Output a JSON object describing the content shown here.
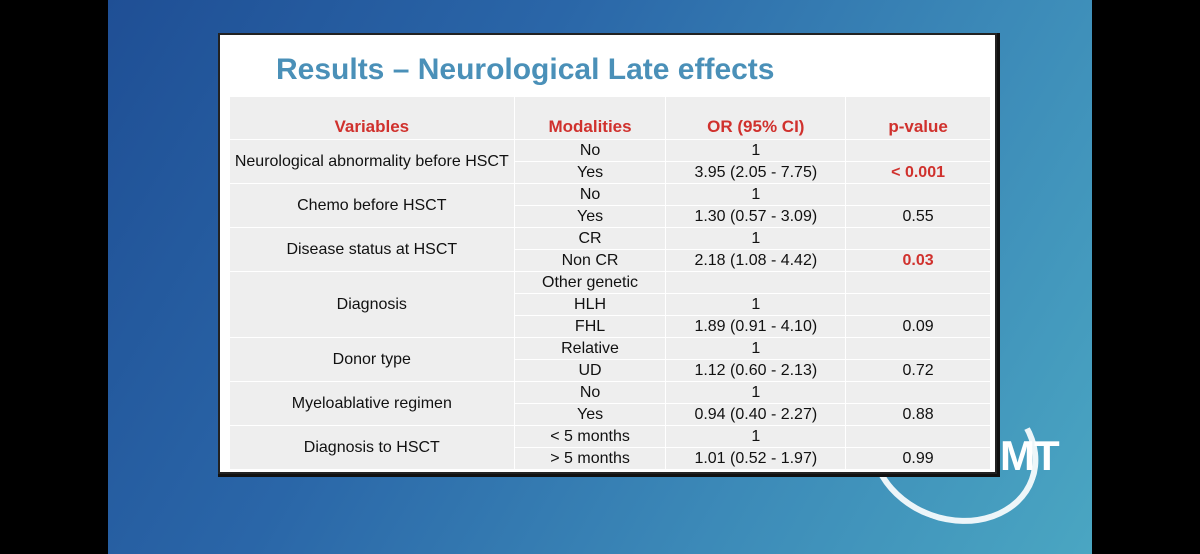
{
  "slide": {
    "title": "Results – Neurological Late effects",
    "logo_text": "MT"
  },
  "table": {
    "headers": [
      "Variables",
      "Modalities",
      "OR (95% CI)",
      "p-value"
    ],
    "groups": [
      {
        "variable": "Neurological abnormality before HSCT",
        "rows": [
          {
            "modality": "No",
            "or": "1",
            "p": ""
          },
          {
            "modality": "Yes",
            "or": "3.95 (2.05 - 7.75)",
            "p": "< 0.001",
            "significant": true
          }
        ]
      },
      {
        "variable": "Chemo before HSCT",
        "rows": [
          {
            "modality": "No",
            "or": "1",
            "p": ""
          },
          {
            "modality": "Yes",
            "or": "1.30 (0.57  - 3.09)",
            "p": "0.55"
          }
        ]
      },
      {
        "variable": "Disease status at HSCT",
        "rows": [
          {
            "modality": "CR",
            "or": "1",
            "p": ""
          },
          {
            "modality": "Non CR",
            "or": "2.18 (1.08 - 4.42)",
            "p": "0.03",
            "significant": true
          }
        ]
      },
      {
        "variable": "Diagnosis",
        "rows": [
          {
            "modality": "Other genetic",
            "or": "",
            "p": ""
          },
          {
            "modality": "HLH",
            "or": "1",
            "p": ""
          },
          {
            "modality": "FHL",
            "or": "1.89 (0.91 - 4.10)",
            "p": "0.09"
          }
        ]
      },
      {
        "variable": "Donor type",
        "rows": [
          {
            "modality": "Relative",
            "or": "1",
            "p": ""
          },
          {
            "modality": "UD",
            "or": "1.12 (0.60 - 2.13)",
            "p": "0.72"
          }
        ]
      },
      {
        "variable": "Myeloablative regimen",
        "rows": [
          {
            "modality": "No",
            "or": "1",
            "p": ""
          },
          {
            "modality": "Yes",
            "or": "0.94 (0.40 - 2.27)",
            "p": "0.88"
          }
        ]
      },
      {
        "variable": "Diagnosis to HSCT",
        "rows": [
          {
            "modality": "< 5 months",
            "or": "1",
            "p": ""
          },
          {
            "modality": "> 5 months",
            "or": "1.01 (0.52 - 1.97)",
            "p": "0.99"
          }
        ]
      }
    ]
  }
}
